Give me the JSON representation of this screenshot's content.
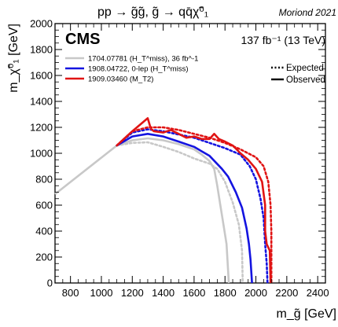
{
  "chart_data": {
    "type": "line",
    "title": "pp → g̃g̃,  g̃ → qq̄χ̃⁰₁",
    "credit": "Moriond 2021",
    "experiment": "CMS",
    "luminosity": "137 fb⁻¹ (13 TeV)",
    "xlabel": "m_g̃ [GeV]",
    "ylabel": "m_χ̃⁰₁ [GeV]",
    "xlim": [
      700,
      2450
    ],
    "ylim": [
      0,
      2000
    ],
    "x_ticks": [
      "800",
      "1000",
      "1200",
      "1400",
      "1600",
      "1800",
      "2000",
      "2200",
      "2400"
    ],
    "y_ticks": [
      "0",
      "200",
      "400",
      "600",
      "800",
      "1000",
      "1200",
      "1400",
      "1600",
      "1800",
      "2000"
    ],
    "grid": false,
    "legend_lines": [
      {
        "label": "Expected",
        "style": "dotted"
      },
      {
        "label": "Observed",
        "style": "solid"
      }
    ],
    "series": [
      {
        "name": "1704.07781 (H_T^miss), 36 fb^-1",
        "color": "#c8c8c8",
        "observed": [
          [
            700,
            685
          ],
          [
            1100,
            1060
          ],
          [
            1200,
            1100
          ],
          [
            1300,
            1115
          ],
          [
            1400,
            1100
          ],
          [
            1500,
            1070
          ],
          [
            1600,
            1030
          ],
          [
            1650,
            990
          ],
          [
            1700,
            940
          ],
          [
            1730,
            880
          ],
          [
            1750,
            750
          ],
          [
            1770,
            600
          ],
          [
            1790,
            450
          ],
          [
            1810,
            300
          ],
          [
            1825,
            0
          ]
        ],
        "expected": [
          [
            1100,
            1060
          ],
          [
            1200,
            1080
          ],
          [
            1300,
            1085
          ],
          [
            1400,
            1050
          ],
          [
            1500,
            1010
          ],
          [
            1600,
            960
          ],
          [
            1700,
            920
          ],
          [
            1750,
            880
          ],
          [
            1800,
            780
          ],
          [
            1850,
            620
          ],
          [
            1890,
            450
          ],
          [
            1910,
            250
          ],
          [
            1915,
            0
          ]
        ]
      },
      {
        "name": "1908.04722, 0-lep (H_T^miss)",
        "color": "#1414e0",
        "observed": [
          [
            1100,
            1060
          ],
          [
            1200,
            1130
          ],
          [
            1300,
            1150
          ],
          [
            1400,
            1130
          ],
          [
            1500,
            1090
          ],
          [
            1600,
            1050
          ],
          [
            1700,
            980
          ],
          [
            1780,
            880
          ],
          [
            1820,
            820
          ],
          [
            1870,
            700
          ],
          [
            1910,
            580
          ],
          [
            1940,
            420
          ],
          [
            1955,
            300
          ],
          [
            1965,
            180
          ],
          [
            1975,
            0
          ]
        ],
        "expected": [
          [
            1100,
            1060
          ],
          [
            1200,
            1160
          ],
          [
            1300,
            1185
          ],
          [
            1400,
            1170
          ],
          [
            1500,
            1145
          ],
          [
            1600,
            1120
          ],
          [
            1700,
            1080
          ],
          [
            1800,
            1040
          ],
          [
            1900,
            990
          ],
          [
            1960,
            900
          ],
          [
            2000,
            800
          ],
          [
            2030,
            650
          ],
          [
            2050,
            500
          ],
          [
            2060,
            300
          ],
          [
            2070,
            150
          ],
          [
            2075,
            0
          ]
        ]
      },
      {
        "name": "1909.03460 (M_T2)",
        "color": "#e01414",
        "observed": [
          [
            1100,
            1060
          ],
          [
            1200,
            1170
          ],
          [
            1300,
            1270
          ],
          [
            1320,
            1190
          ],
          [
            1340,
            1170
          ],
          [
            1400,
            1160
          ],
          [
            1450,
            1180
          ],
          [
            1500,
            1150
          ],
          [
            1550,
            1120
          ],
          [
            1600,
            1130
          ],
          [
            1650,
            1110
          ],
          [
            1700,
            1110
          ],
          [
            1730,
            1150
          ],
          [
            1760,
            1110
          ],
          [
            1800,
            1090
          ],
          [
            1850,
            1060
          ],
          [
            1900,
            1000
          ],
          [
            1950,
            950
          ],
          [
            2000,
            880
          ],
          [
            2040,
            780
          ],
          [
            2060,
            600
          ],
          [
            2060,
            400
          ],
          [
            2070,
            300
          ],
          [
            2090,
            250
          ],
          [
            2095,
            0
          ]
        ],
        "expected": [
          [
            1100,
            1060
          ],
          [
            1200,
            1170
          ],
          [
            1300,
            1200
          ],
          [
            1400,
            1200
          ],
          [
            1500,
            1180
          ],
          [
            1600,
            1150
          ],
          [
            1700,
            1120
          ],
          [
            1800,
            1080
          ],
          [
            1900,
            1030
          ],
          [
            2000,
            970
          ],
          [
            2050,
            900
          ],
          [
            2080,
            780
          ],
          [
            2095,
            600
          ],
          [
            2100,
            400
          ],
          [
            2100,
            200
          ],
          [
            2100,
            0
          ]
        ]
      }
    ]
  }
}
